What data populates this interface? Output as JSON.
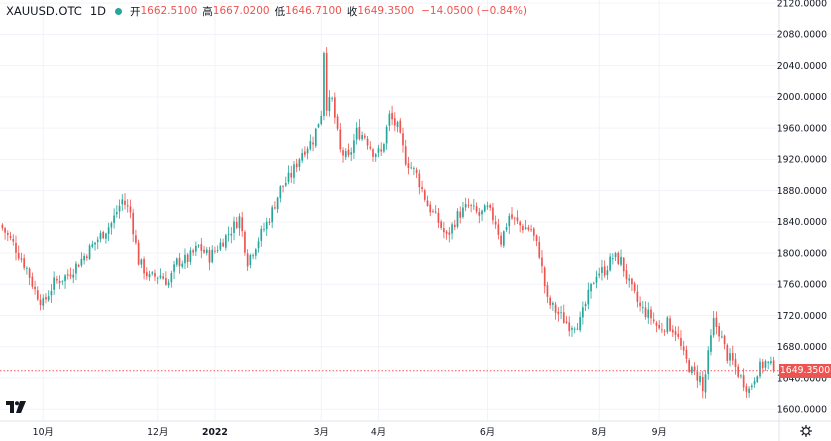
{
  "legend": {
    "symbol": "XAUUSD.OTC",
    "timeframe": "1D",
    "open_label": "开",
    "open": "1662.5100",
    "high_label": "高",
    "high": "1667.0200",
    "low_label": "低",
    "low": "1646.7100",
    "close_label": "收",
    "close": "1649.3500",
    "change": "−14.0500 (−0.84%)"
  },
  "colors": {
    "up": "#26a69a",
    "down": "#ef5350",
    "grid": "#f0f3fa",
    "text": "#131722",
    "status_dot": "#26a69a"
  },
  "last_price": "1649.3500",
  "icons": [
    "tradingview-logo-icon",
    "settings-gear-icon"
  ],
  "chart_data": {
    "type": "candlestick",
    "title": "",
    "xlabel": "",
    "ylabel": "",
    "ylim": [
      1585,
      2124
    ],
    "y_ticks": [
      "2120.0000",
      "2080.0000",
      "2040.0000",
      "2000.0000",
      "1960.0000",
      "1920.0000",
      "1880.0000",
      "1840.0000",
      "1800.0000",
      "1760.0000",
      "1720.0000",
      "1680.0000",
      "1640.0000",
      "1600.0000"
    ],
    "y_tick_values": [
      2120,
      2080,
      2040,
      2000,
      1960,
      1920,
      1880,
      1840,
      1800,
      1760,
      1720,
      1680,
      1640,
      1600
    ],
    "x_ticks": [
      {
        "label": "10月",
        "index": 15,
        "bold": false
      },
      {
        "label": "12月",
        "index": 57,
        "bold": false
      },
      {
        "label": "2022",
        "index": 78,
        "bold": true
      },
      {
        "label": "3月",
        "index": 117,
        "bold": false
      },
      {
        "label": "4月",
        "index": 138,
        "bold": false
      },
      {
        "label": "6月",
        "index": 178,
        "bold": false
      },
      {
        "label": "8月",
        "index": 219,
        "bold": false
      },
      {
        "label": "9月",
        "index": 241,
        "bold": false
      }
    ],
    "grid": true,
    "legend_position": "top-left",
    "candles": []
  }
}
